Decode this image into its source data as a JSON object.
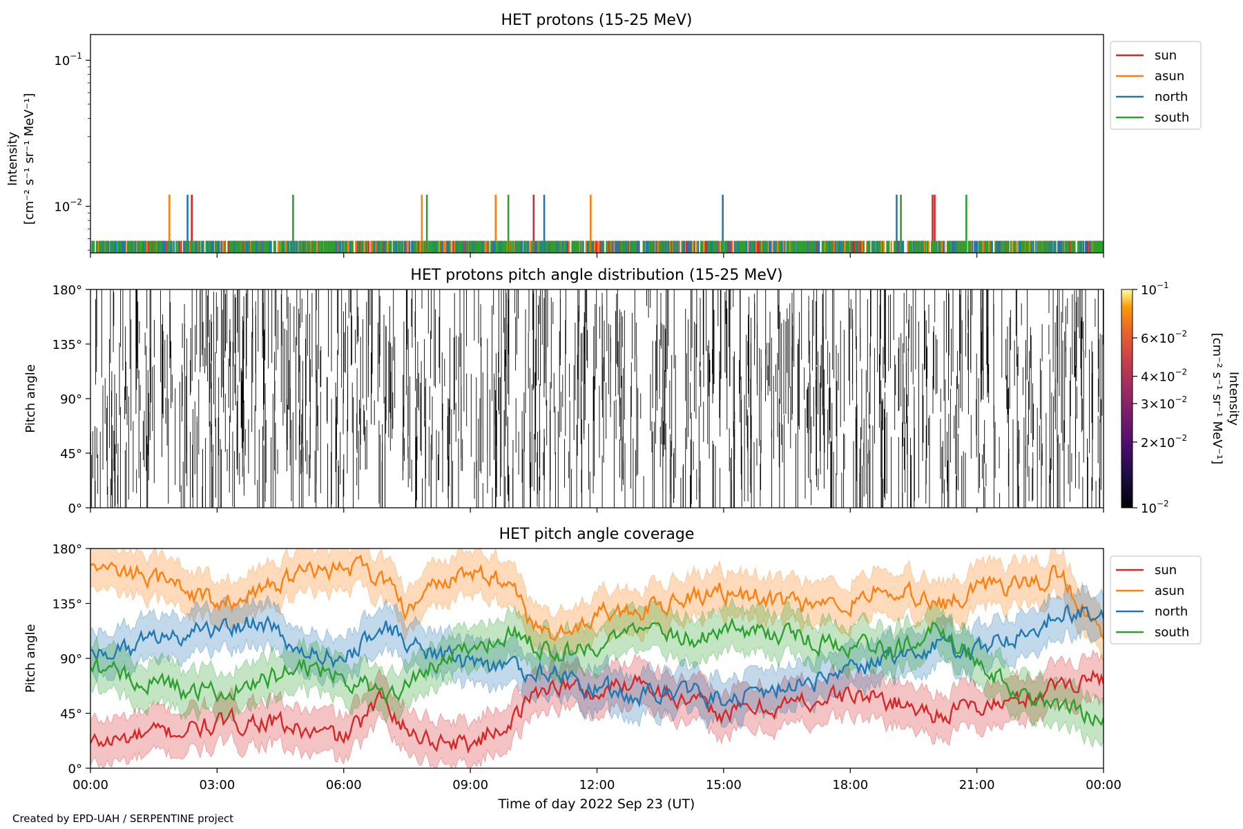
{
  "credit": "Created by EPD-UAH / SERPENTINE project",
  "colors": {
    "sun": "#d62728",
    "asun": "#ff7f0e",
    "north": "#1f77b4",
    "south": "#2ca02c"
  },
  "chart_data": [
    {
      "type": "line",
      "title": "HET protons (15-25 MeV)",
      "ylabel": [
        "Intensity",
        "[cm⁻² s⁻¹ sr⁻¹ MeV⁻¹]"
      ],
      "yscale": "log",
      "ylim": [
        0.0048,
        0.15
      ],
      "yticks": [
        {
          "value": 0.1,
          "base": "10",
          "exp": "−1"
        },
        {
          "value": 0.01,
          "base": "10",
          "exp": "−2"
        }
      ],
      "xlim_hours": [
        0,
        24
      ],
      "legend": {
        "placement": "right",
        "entries": [
          "sun",
          "asun",
          "north",
          "south"
        ]
      },
      "series": [
        {
          "name": "sun",
          "baseline": 0.0058,
          "spikes": [
            {
              "t": 2.4,
              "v": 0.012
            },
            {
              "t": 10.5,
              "v": 0.012
            },
            {
              "t": 19.95,
              "v": 0.012
            },
            {
              "t": 20.0,
              "v": 0.012
            }
          ]
        },
        {
          "name": "asun",
          "baseline": 0.0058,
          "spikes": [
            {
              "t": 1.87,
              "v": 0.012
            },
            {
              "t": 7.85,
              "v": 0.012
            },
            {
              "t": 9.6,
              "v": 0.012
            },
            {
              "t": 11.85,
              "v": 0.012
            }
          ]
        },
        {
          "name": "north",
          "baseline": 0.0058,
          "spikes": [
            {
              "t": 2.3,
              "v": 0.012
            },
            {
              "t": 10.75,
              "v": 0.012
            },
            {
              "t": 14.98,
              "v": 0.012
            },
            {
              "t": 19.1,
              "v": 0.012
            }
          ]
        },
        {
          "name": "south",
          "baseline": 0.0058,
          "spikes": [
            {
              "t": 4.8,
              "v": 0.012
            },
            {
              "t": 7.97,
              "v": 0.012
            },
            {
              "t": 9.9,
              "v": 0.012
            },
            {
              "t": 19.2,
              "v": 0.012
            },
            {
              "t": 20.75,
              "v": 0.012
            }
          ]
        }
      ]
    },
    {
      "type": "heatmap",
      "title": "HET protons pitch angle distribution (15-25 MeV)",
      "ylabel": "Pitch angle",
      "ylim": [
        0,
        180
      ],
      "yticks": [
        "0°",
        "45°",
        "90°",
        "135°",
        "180°"
      ],
      "xlim_hours": [
        0,
        24
      ],
      "mark_color": "#000000",
      "colorbar": {
        "label": [
          "Intensity",
          "[cm⁻² s⁻¹ sr⁻¹ MeV⁻¹]"
        ],
        "scale": "log",
        "range": [
          0.01,
          0.1
        ],
        "ticks": [
          {
            "value": 0.1,
            "mant": "",
            "exp": "−1"
          },
          {
            "value": 0.06,
            "mant": "6",
            "exp": "−2"
          },
          {
            "value": 0.04,
            "mant": "4",
            "exp": "−2"
          },
          {
            "value": 0.03,
            "mant": "3",
            "exp": "−2"
          },
          {
            "value": 0.02,
            "mant": "2",
            "exp": "−2"
          },
          {
            "value": 0.01,
            "mant": "",
            "exp": "−2"
          }
        ],
        "colormap": "inferno"
      }
    },
    {
      "type": "line",
      "title": "HET pitch angle coverage",
      "ylabel": "Pitch angle",
      "xlabel": "Time of day 2022 Sep 23 (UT)",
      "ylim": [
        0,
        180
      ],
      "yticks": [
        "0°",
        "45°",
        "90°",
        "135°",
        "180°"
      ],
      "xticks": [
        "00:00",
        "03:00",
        "06:00",
        "09:00",
        "12:00",
        "15:00",
        "18:00",
        "21:00",
        "00:00"
      ],
      "xlim_hours": [
        0,
        24
      ],
      "legend": {
        "placement": "right",
        "entries": [
          "sun",
          "asun",
          "north",
          "south"
        ]
      },
      "band_halfwidth_deg": 18,
      "series": [
        {
          "name": "sun",
          "x": [
            0,
            1,
            2,
            3,
            4,
            5,
            6,
            6.5,
            7,
            7.5,
            8,
            9,
            10,
            10.5,
            11,
            12,
            13,
            14,
            15,
            16,
            17,
            18,
            19,
            20,
            21,
            22,
            23,
            24
          ],
          "y": [
            20,
            25,
            30,
            35,
            40,
            30,
            25,
            40,
            60,
            30,
            25,
            20,
            40,
            60,
            70,
            60,
            75,
            55,
            45,
            50,
            55,
            60,
            55,
            45,
            50,
            55,
            70,
            75
          ]
        },
        {
          "name": "asun",
          "x": [
            0,
            1,
            2,
            3,
            4,
            5,
            6,
            7,
            7.5,
            8,
            9,
            10,
            10.5,
            11,
            12,
            13,
            14,
            15,
            16,
            17,
            18,
            19,
            20,
            21,
            22,
            23,
            24
          ],
          "y": [
            165,
            160,
            150,
            135,
            145,
            160,
            165,
            155,
            125,
            150,
            160,
            150,
            115,
            105,
            125,
            130,
            140,
            145,
            140,
            130,
            135,
            150,
            130,
            145,
            150,
            160,
            105
          ]
        },
        {
          "name": "north",
          "x": [
            0,
            1,
            2,
            3,
            4,
            5,
            6,
            7,
            8,
            9,
            10,
            11,
            12,
            13,
            14,
            15,
            16,
            17,
            18,
            19,
            20,
            21,
            22,
            23,
            24
          ],
          "y": [
            95,
            100,
            110,
            115,
            120,
            95,
            90,
            115,
            95,
            85,
            80,
            80,
            65,
            60,
            65,
            55,
            65,
            70,
            80,
            90,
            100,
            95,
            110,
            130,
            125
          ]
        },
        {
          "name": "south",
          "x": [
            0,
            1,
            2,
            3,
            4,
            5,
            6,
            7,
            8,
            9,
            10,
            11,
            12,
            13,
            14,
            15,
            16,
            17,
            18,
            19,
            20,
            21,
            22,
            23,
            24
          ],
          "y": [
            80,
            75,
            65,
            60,
            70,
            85,
            75,
            60,
            80,
            100,
            110,
            95,
            100,
            110,
            105,
            115,
            110,
            105,
            100,
            95,
            115,
            90,
            60,
            50,
            40
          ]
        }
      ]
    }
  ]
}
